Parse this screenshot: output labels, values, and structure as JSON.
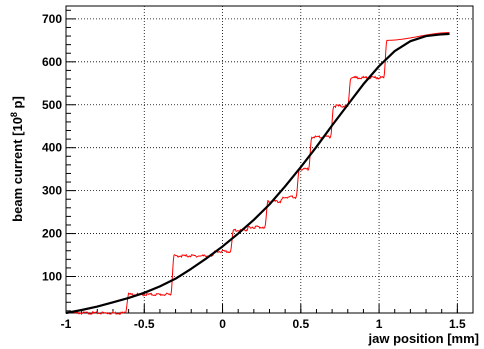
{
  "chart_data": {
    "type": "line",
    "xlabel": "jaw position [mm]",
    "ylabel": "beam current [10",
    "ylabel_exp": "8",
    "ylabel_tail": " p]",
    "xlim": [
      -1,
      1.6
    ],
    "ylim": [
      15,
      730
    ],
    "xticks": [
      -1,
      -0.5,
      0,
      0.5,
      1,
      1.5
    ],
    "xtick_labels": [
      "-1",
      "-0.5",
      "0",
      "0.5",
      "1",
      "1.5"
    ],
    "yticks": [
      100,
      200,
      300,
      400,
      500,
      600,
      700
    ],
    "ytick_labels": [
      "100",
      "200",
      "300",
      "400",
      "500",
      "600",
      "700"
    ],
    "grid": true,
    "series": [
      {
        "color": "#ff0000",
        "style": "measured-steps",
        "x": [
          -0.95,
          -0.62,
          -0.6,
          -0.33,
          -0.31,
          -0.07,
          -0.05,
          0.05,
          0.07,
          0.15,
          0.17,
          0.27,
          0.29,
          0.37,
          0.39,
          0.47,
          0.49,
          0.55,
          0.57,
          0.69,
          0.71,
          0.8,
          0.82,
          1.03,
          1.05,
          1.45
        ],
        "y": [
          15,
          15,
          58,
          58,
          148,
          148,
          158,
          158,
          208,
          208,
          215,
          215,
          275,
          275,
          285,
          285,
          350,
          350,
          425,
          425,
          497,
          497,
          563,
          563,
          650,
          668
        ]
      },
      {
        "color": "#000000",
        "style": "fit",
        "x": [
          -1.0,
          -0.9,
          -0.8,
          -0.7,
          -0.6,
          -0.5,
          -0.4,
          -0.3,
          -0.2,
          -0.1,
          0.0,
          0.1,
          0.2,
          0.3,
          0.4,
          0.5,
          0.6,
          0.7,
          0.8,
          0.9,
          1.0,
          1.1,
          1.2,
          1.3,
          1.4,
          1.45
        ],
        "y": [
          15,
          22,
          30,
          40,
          50,
          62,
          77,
          95,
          118,
          143,
          170,
          200,
          232,
          268,
          310,
          355,
          402,
          452,
          500,
          548,
          590,
          625,
          648,
          660,
          664,
          665
        ]
      }
    ]
  }
}
